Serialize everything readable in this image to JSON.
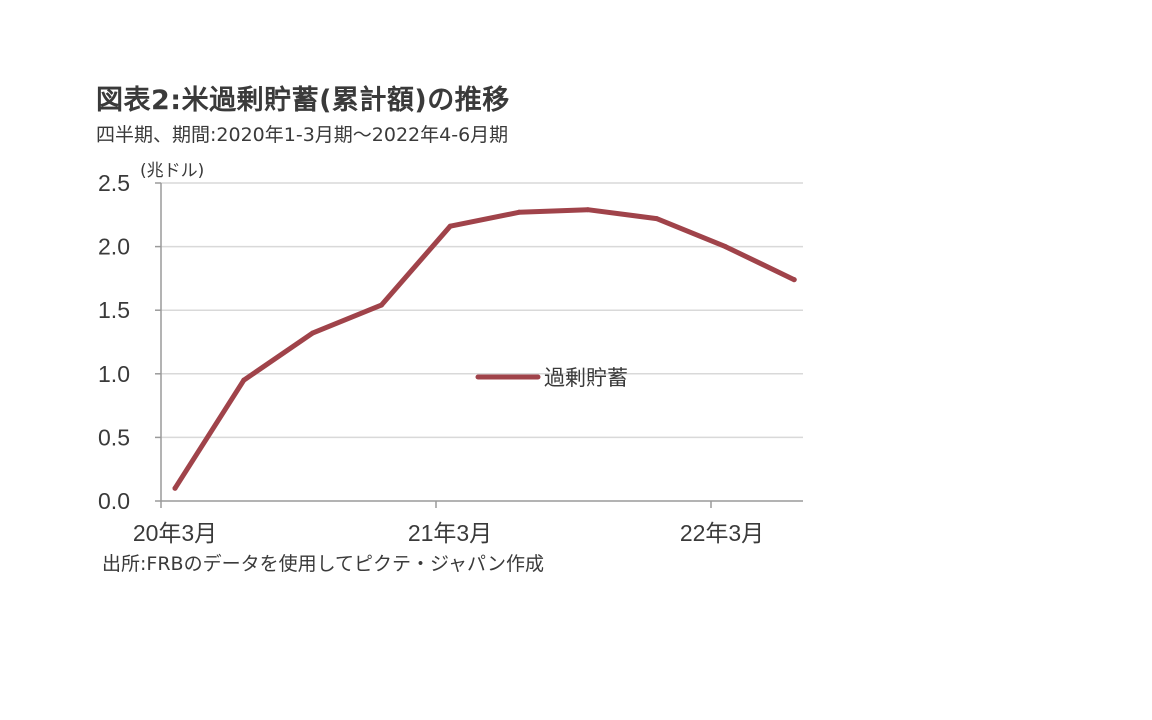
{
  "header": {
    "title": "図表2:米過剰貯蓄(累計額)の推移",
    "subtitle": "四半期、期間:2020年1-3月期～2022年4-6月期"
  },
  "footer": {
    "source": "出所:FRBのデータを使用してピクテ・ジャパン作成"
  },
  "chart_data": {
    "type": "line",
    "unit_label": "(兆ドル)",
    "x": [
      "2020Q1",
      "2020Q2",
      "2020Q3",
      "2020Q4",
      "2021Q1",
      "2021Q2",
      "2021Q3",
      "2021Q4",
      "2022Q1",
      "2022Q2"
    ],
    "x_tick_labels": [
      {
        "label": "20年3月",
        "index": 0
      },
      {
        "label": "21年3月",
        "index": 4
      },
      {
        "label": "22年3月",
        "index": 8
      }
    ],
    "y_ticks": [
      "0.0",
      "0.5",
      "1.0",
      "1.5",
      "2.0",
      "2.5"
    ],
    "ylim": [
      0,
      2.5
    ],
    "grid": true,
    "legend_position": "center-right",
    "series": [
      {
        "name": "過剰貯蓄",
        "color": "#a0434a",
        "values": [
          0.1,
          0.95,
          1.32,
          1.54,
          2.16,
          2.27,
          2.29,
          2.22,
          2.0,
          1.74
        ]
      }
    ]
  }
}
